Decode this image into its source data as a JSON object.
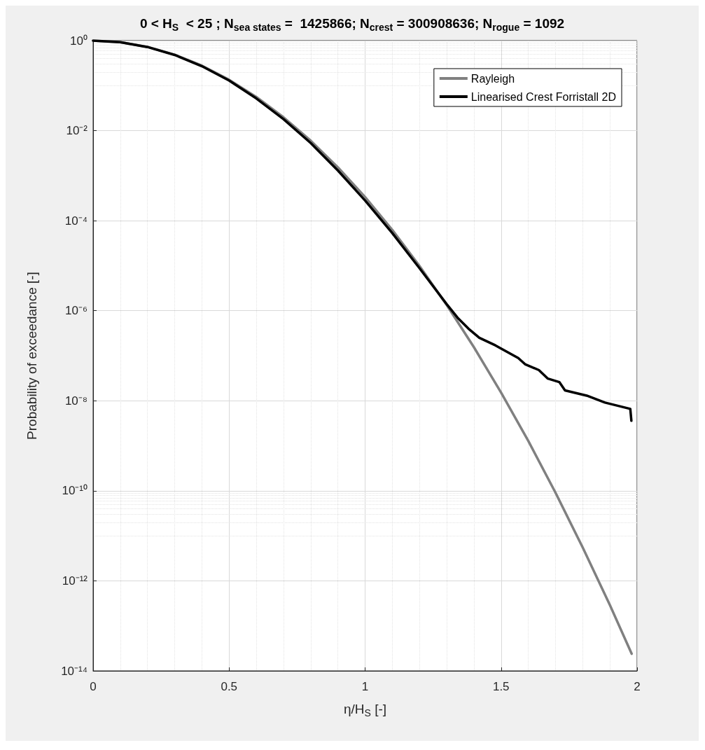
{
  "chart_data": {
    "type": "line",
    "title": "0 < H$_{S}$  < 25 ; N$_{sea states}$ =  1425866; N$_{crest}$ = 300908636; N$_{rogue}$ = 1092",
    "xlabel": "η/H$_{S}$ [-]",
    "ylabel": "Probability of exceedance [-]",
    "log": "y",
    "grid": true,
    "legend": "top right",
    "line_style": "solid",
    "marker": "none",
    "xlim": [
      0,
      2
    ],
    "xticks": [
      0,
      0.5,
      1,
      1.5,
      2
    ],
    "ylim": [
      1e-14,
      1
    ],
    "yticks": [
      {
        "value": 1e-14,
        "label": "10⁻¹⁴"
      },
      {
        "value": 1e-12,
        "label": "10⁻¹²"
      },
      {
        "value": 1e-10,
        "label": "10⁻¹⁰"
      },
      {
        "value": 1e-08,
        "label": "10⁻⁸"
      },
      {
        "value": 1e-06,
        "label": "10⁻⁶"
      },
      {
        "value": 0.0001,
        "label": "10⁻⁴"
      },
      {
        "value": 0.01,
        "label": "10⁻²"
      },
      {
        "value": 1,
        "label": "10⁰"
      }
    ],
    "series": [
      {
        "name": "Rayleigh",
        "color": "#808080",
        "x": [
          0,
          0.1,
          0.2,
          0.3,
          0.4,
          0.5,
          0.6,
          0.7,
          0.8,
          0.9,
          1.0,
          1.1,
          1.2,
          1.3,
          1.4,
          1.5,
          1.6,
          1.7,
          1.8,
          1.9,
          1.98
        ],
        "values": [
          1,
          0.923,
          0.726,
          0.487,
          0.278,
          0.135,
          0.0561,
          0.0198,
          0.00598,
          0.00153,
          0.000335,
          6.25e-05,
          9.9e-06,
          1.34e-06,
          1.55e-07,
          1.52e-08,
          1.28e-09,
          9.1e-11,
          5.5e-12,
          2.9e-13,
          2.4e-14
        ]
      },
      {
        "name": "Linearised Crest Forristall 2D",
        "color": "#000000",
        "x": [
          0,
          0.1,
          0.2,
          0.3,
          0.4,
          0.5,
          0.6,
          0.7,
          0.8,
          0.9,
          1.0,
          1.1,
          1.2,
          1.3,
          1.34,
          1.38,
          1.42,
          1.479,
          1.563,
          1.588,
          1.639,
          1.672,
          1.714,
          1.735,
          1.815,
          1.882,
          1.975,
          1.979
        ],
        "values": [
          1,
          0.92,
          0.72,
          0.48,
          0.27,
          0.13,
          0.052,
          0.018,
          0.0053,
          0.0013,
          0.00028,
          5.3e-05,
          8.8e-06,
          1.4e-06,
          7e-07,
          4e-07,
          2.5e-07,
          1.7e-07,
          8.9e-08,
          6.5e-08,
          4.8e-08,
          3.1e-08,
          2.6e-08,
          1.7e-08,
          1.3e-08,
          9.1e-09,
          6.6e-09,
          3.6e-09
        ]
      }
    ]
  }
}
